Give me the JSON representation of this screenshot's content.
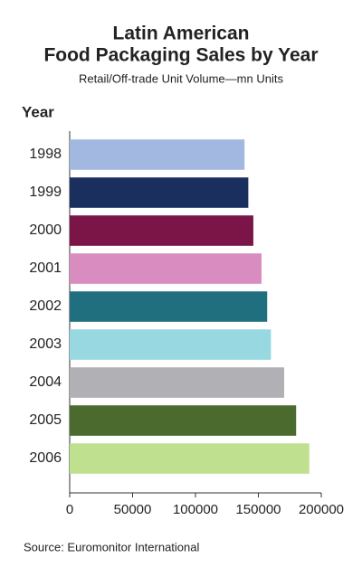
{
  "chart_data": {
    "type": "hbar",
    "title": [
      "Latin American",
      "Food Packaging Sales by Year"
    ],
    "subtitle": "Retail/Off-trade Unit Volume—mn Units",
    "y_label": "Year",
    "source": "Source: Euromonitor International",
    "categories": [
      "1998",
      "1999",
      "2000",
      "2001",
      "2002",
      "2003",
      "2004",
      "2005",
      "2006"
    ],
    "values": [
      139000,
      142000,
      146000,
      152500,
      157000,
      160000,
      170500,
      180000,
      190500
    ],
    "colors": [
      "#a3b8e0",
      "#1b2f5e",
      "#7b1548",
      "#d98cbf",
      "#1f6f7f",
      "#98d8e0",
      "#b0b0b5",
      "#4a6a2e",
      "#bfe08f"
    ],
    "xlim": [
      0,
      200000
    ],
    "xticks": [
      0,
      50000,
      100000,
      150000,
      200000
    ]
  }
}
